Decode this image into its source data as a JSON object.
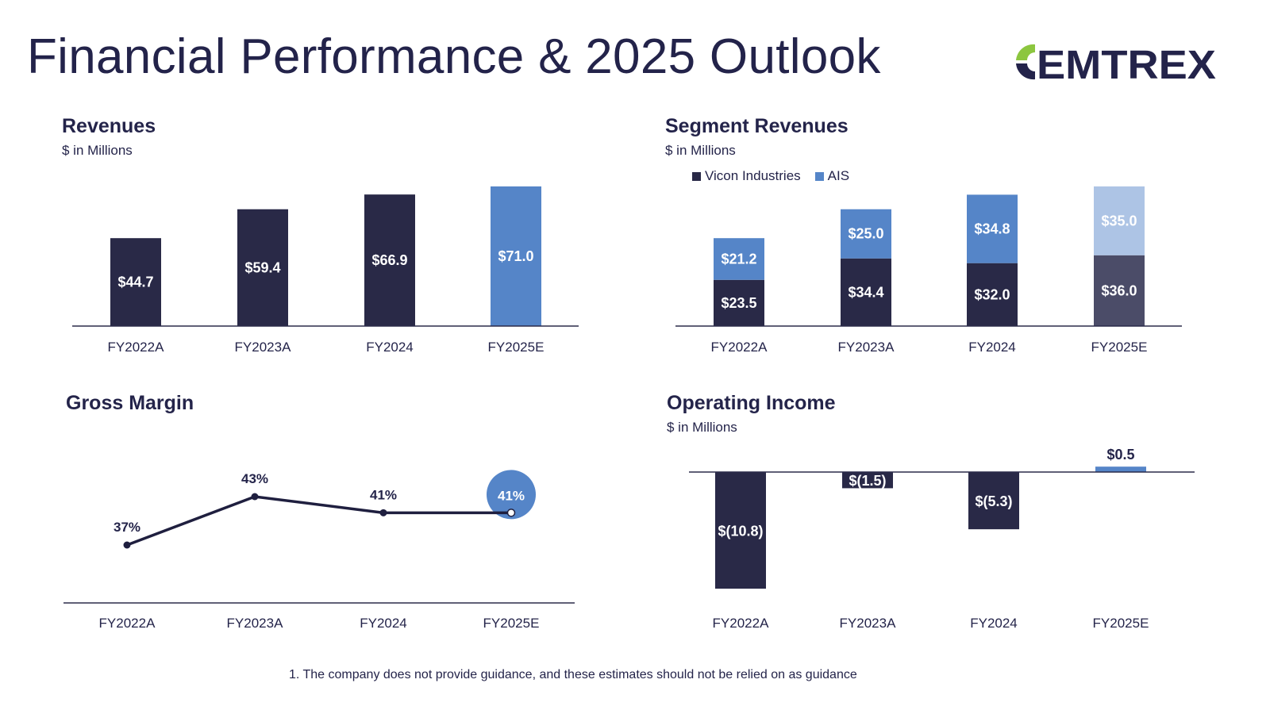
{
  "page": {
    "title": "Financial Performance & 2025 Outlook",
    "logo_text": "CEMTREX",
    "footnote": "1.  The company does not provide guidance, and these estimates should not be relied on as guidance"
  },
  "colors": {
    "dark_navy": "#292947",
    "blue": "#5585c8",
    "light_blue": "#adc4e5",
    "slate": "#4b4c68",
    "logo_green": "#8cc63f",
    "title": "#23234a"
  },
  "chart_data": [
    {
      "id": "revenues",
      "type": "bar",
      "title": "Revenues",
      "subtitle": "$ in Millions",
      "categories": [
        "FY2022A",
        "FY2023A",
        "FY2024",
        "FY2025E"
      ],
      "values": [
        44.7,
        59.4,
        66.9,
        71.0
      ],
      "data_labels": [
        "$44.7",
        "$59.4",
        "$66.9",
        "$71.0"
      ],
      "estimate_index": 3,
      "ylim": [
        0,
        75
      ],
      "grid": false
    },
    {
      "id": "segment_revenues",
      "type": "bar",
      "stacked": true,
      "title": "Segment Revenues",
      "subtitle": "$ in Millions",
      "categories": [
        "FY2022A",
        "FY2023A",
        "FY2024",
        "FY2025E"
      ],
      "series": [
        {
          "name": "Vicon Industries",
          "values": [
            23.5,
            34.4,
            32.0,
            36.0
          ],
          "data_labels": [
            "$23.5",
            "$34.4",
            "$32.0",
            "$36.0"
          ]
        },
        {
          "name": "AIS",
          "values": [
            21.2,
            25.0,
            34.8,
            35.0
          ],
          "data_labels": [
            "$21.2",
            "$25.0",
            "$34.8",
            "$35.0"
          ]
        }
      ],
      "legend": "top-left",
      "estimate_index": 3,
      "ylim": [
        0,
        75
      ],
      "grid": false
    },
    {
      "id": "gross_margin",
      "type": "line",
      "title": "Gross Margin",
      "categories": [
        "FY2022A",
        "FY2023A",
        "FY2024",
        "FY2025E"
      ],
      "values": [
        37,
        43,
        41,
        41
      ],
      "data_labels": [
        "37%",
        "43%",
        "41%",
        "41%"
      ],
      "unit": "%",
      "estimate_index": 3,
      "ylim": [
        25,
        50
      ],
      "grid": false
    },
    {
      "id": "operating_income",
      "type": "bar",
      "title": "Operating Income",
      "subtitle": "$ in Millions",
      "categories": [
        "FY2022A",
        "FY2023A",
        "FY2024",
        "FY2025E"
      ],
      "values": [
        -10.8,
        -1.5,
        -5.3,
        0.5
      ],
      "data_labels": [
        "$(10.8)",
        "$(1.5)",
        "$(5.3)",
        "$0.5"
      ],
      "estimate_index": 3,
      "ylim": [
        -11,
        1
      ],
      "grid": false
    }
  ]
}
